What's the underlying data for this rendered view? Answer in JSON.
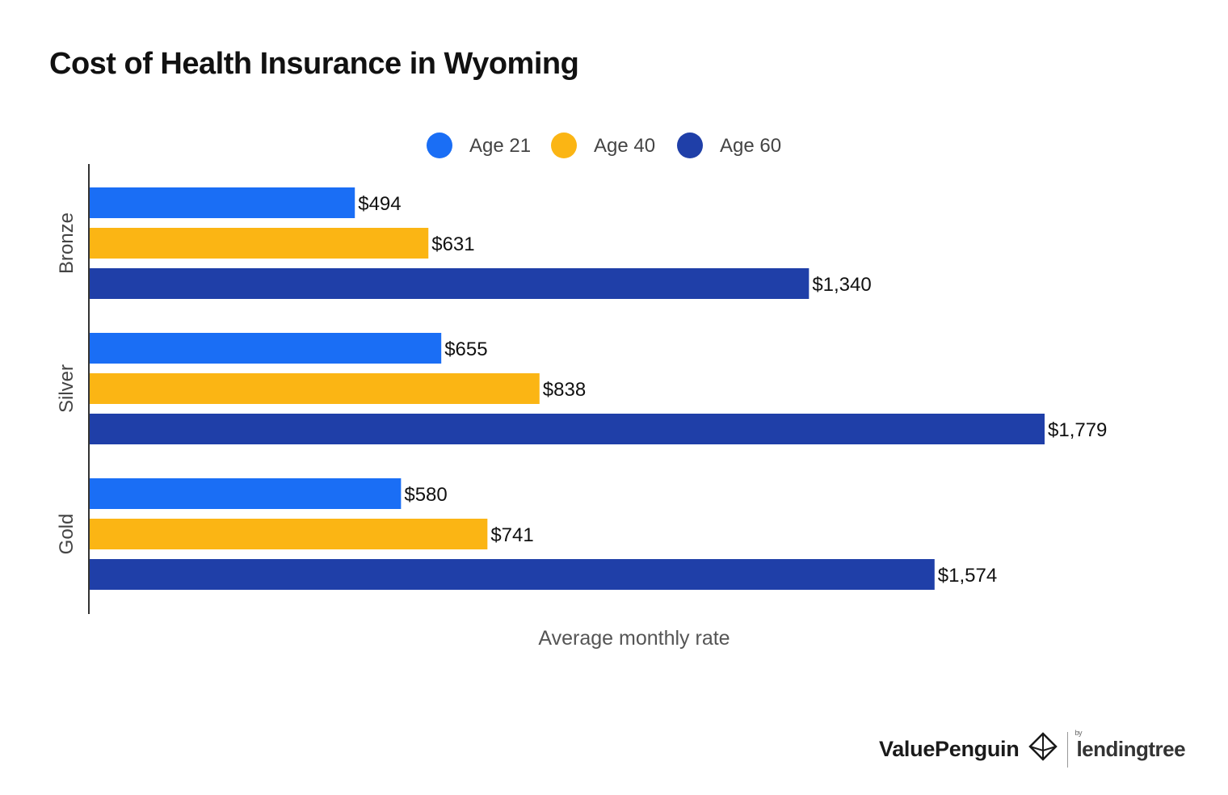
{
  "chart_data": {
    "type": "bar",
    "orientation": "horizontal",
    "title": "Cost of Health Insurance in Wyoming",
    "xlabel": "Average monthly rate",
    "ylabel": "",
    "categories": [
      "Bronze",
      "Silver",
      "Gold"
    ],
    "series": [
      {
        "name": "Age 21",
        "color": "#1a6ef5",
        "values": [
          494,
          655,
          580
        ],
        "labels": [
          "$494",
          "$655",
          "$580"
        ]
      },
      {
        "name": "Age 40",
        "color": "#fbb514",
        "values": [
          631,
          838,
          741
        ],
        "labels": [
          "$631",
          "$838",
          "$741"
        ]
      },
      {
        "name": "Age 60",
        "color": "#1f3fa8",
        "values": [
          1340,
          1779,
          1574
        ],
        "labels": [
          "$1,340",
          "$1,779",
          "$1,574"
        ]
      }
    ],
    "xlim": [
      0,
      2000
    ],
    "grid": false,
    "legend_position": "top-center"
  },
  "branding": {
    "valuepenguin": "ValuePenguin",
    "by": "by",
    "lendingtree": "lendingtree",
    "logo_icon": "penguin-diamond-icon"
  }
}
